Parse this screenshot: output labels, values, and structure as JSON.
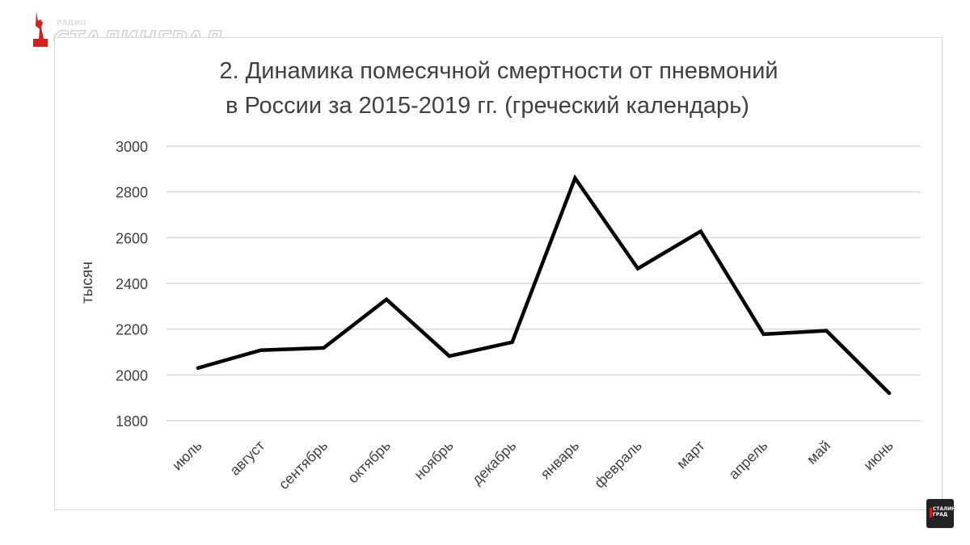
{
  "logo": {
    "small_text": "РАДИО",
    "text": "СТАЛИНГРАД",
    "accent_color": "#d32121"
  },
  "badge": {
    "text": "СТАЛИН ГРАД"
  },
  "chart_data": {
    "type": "line",
    "title_lines": [
      "2. Динамика помесячной смертности от пневмоний",
      "в России за 2015-2019 гг. (греческий календарь)"
    ],
    "ylabel": "тысяч",
    "xlabel": "",
    "categories": [
      "июль",
      "август",
      "сентябрь",
      "октябрь",
      "ноябрь",
      "декабрь",
      "январь",
      "февраль",
      "март",
      "апрель",
      "май",
      "июнь"
    ],
    "series": [
      {
        "values": [
          2030,
          2108,
          2118,
          2330,
          2082,
          2143,
          2860,
          2465,
          2628,
          2178,
          2193,
          1920
        ],
        "color": "#000000"
      }
    ],
    "ylim": [
      1800,
      3000
    ],
    "yticks": [
      1800,
      2000,
      2200,
      2400,
      2600,
      2800,
      3000
    ],
    "grid": true,
    "legend": "none"
  }
}
